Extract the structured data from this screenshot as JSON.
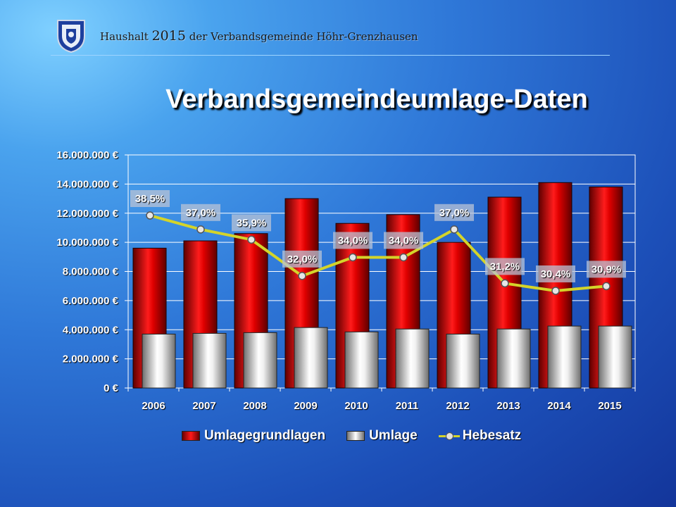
{
  "header": {
    "prefix": "Haushalt",
    "year": "2015",
    "suffix": "der Verbandsgemeinde Höhr-Grenzhausen"
  },
  "title": "Verbandsgemeindeumlage-Daten",
  "legend": {
    "series1": "Umlagegrundlagen",
    "series2": "Umlage",
    "series3": "Hebesatz"
  },
  "colors": {
    "umlagegrundlagen": "#e00000",
    "umlage": "#ffffff",
    "hebesatz": "#d4d42a"
  },
  "chart_data": {
    "type": "bar",
    "categories": [
      "2006",
      "2007",
      "2008",
      "2009",
      "2010",
      "2011",
      "2012",
      "2013",
      "2014",
      "2015"
    ],
    "series": [
      {
        "name": "Umlagegrundlagen",
        "values": [
          9600000,
          10100000,
          10600000,
          13000000,
          11300000,
          11900000,
          10000000,
          13100000,
          14100000,
          13800000
        ]
      },
      {
        "name": "Umlage",
        "values": [
          3700000,
          3750000,
          3800000,
          4150000,
          3850000,
          4050000,
          3700000,
          4050000,
          4250000,
          4250000
        ]
      },
      {
        "name": "Hebesatz",
        "type": "line",
        "values": [
          38.5,
          37.0,
          35.9,
          32.0,
          34.0,
          34.0,
          37.0,
          31.2,
          30.4,
          30.9
        ],
        "labels": [
          "38,5%",
          "37,0%",
          "35,9%",
          "32,0%",
          "34,0%",
          "34,0%",
          "37,0%",
          "31,2%",
          "30,4%",
          "30,9%"
        ]
      }
    ],
    "y_ticks": [
      "0 €",
      "2.000.000 €",
      "4.000.000 €",
      "6.000.000 €",
      "8.000.000 €",
      "10.000.000 €",
      "12.000.000 €",
      "14.000.000 €",
      "16.000.000 €"
    ],
    "ylim": [
      0,
      16000000
    ],
    "grid": true,
    "legend_position": "bottom"
  }
}
